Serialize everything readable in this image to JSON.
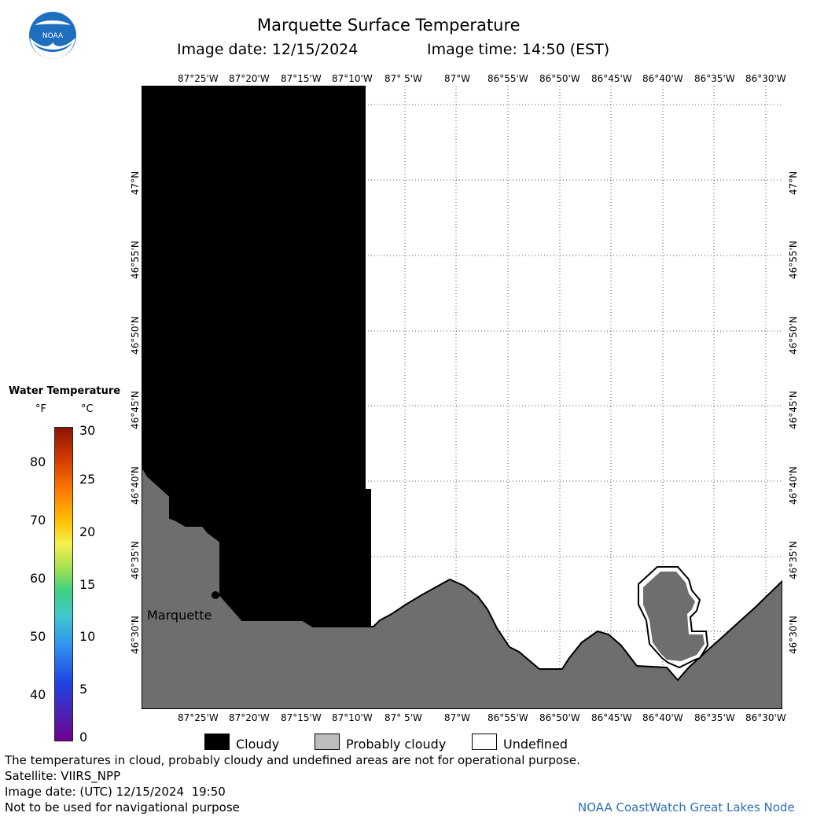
{
  "header": {
    "title": "Marquette Surface Temperature",
    "image_date": "Image date: 12/15/2024",
    "image_time": "Image time: 14:50 (EST)"
  },
  "logo": {
    "text": "NOAA",
    "icon": "noaa-logo-icon"
  },
  "map": {
    "top_lon_labels": [
      "87°25'W",
      "87°20'W",
      "87°15'W",
      "87°10'W",
      "87° 5'W",
      "87°W",
      "86°55'W",
      "86°50'W",
      "86°45'W",
      "86°40'W",
      "86°35'W",
      "86°30'W"
    ],
    "bottom_lon_labels": [
      "87°25'W",
      "87°20'W",
      "87°15'W",
      "87°10'W",
      "87° 5'W",
      "87°W",
      "86°55'W",
      "86°50'W",
      "86°45'W",
      "86°40'W",
      "86°35'W",
      "86°30'W"
    ],
    "lat_labels": [
      "47°N",
      "46°55'N",
      "46°50'N",
      "46°45'N",
      "46°40'N",
      "46°35'N",
      "46°30'N"
    ],
    "city_label": "Marquette",
    "colors": {
      "cloudy": "#000000",
      "probably_cloudy": "#6e6e6e",
      "undefined": "#ffffff"
    }
  },
  "colorbar": {
    "title": "Water Temperature",
    "unit_f": "°F",
    "unit_c": "°C",
    "f_ticks": [
      "80",
      "70",
      "60",
      "50",
      "40"
    ],
    "c_ticks": [
      "30",
      "25",
      "20",
      "15",
      "10",
      "5",
      "0"
    ]
  },
  "legend": {
    "cloudy": "Cloudy",
    "probably_cloudy": "Probably cloudy",
    "undefined": "Undefined"
  },
  "footer": {
    "disclaimer": "The temperatures in cloud, probably cloudy and undefined areas are not for operational purpose.",
    "satellite": "Satellite: VIIRS_NPP",
    "utc_date": "Image date: (UTC) 12/15/2024  19:50",
    "nav_warning": "Not to be used for navigational purpose",
    "credit": "NOAA CoastWatch Great Lakes Node"
  }
}
